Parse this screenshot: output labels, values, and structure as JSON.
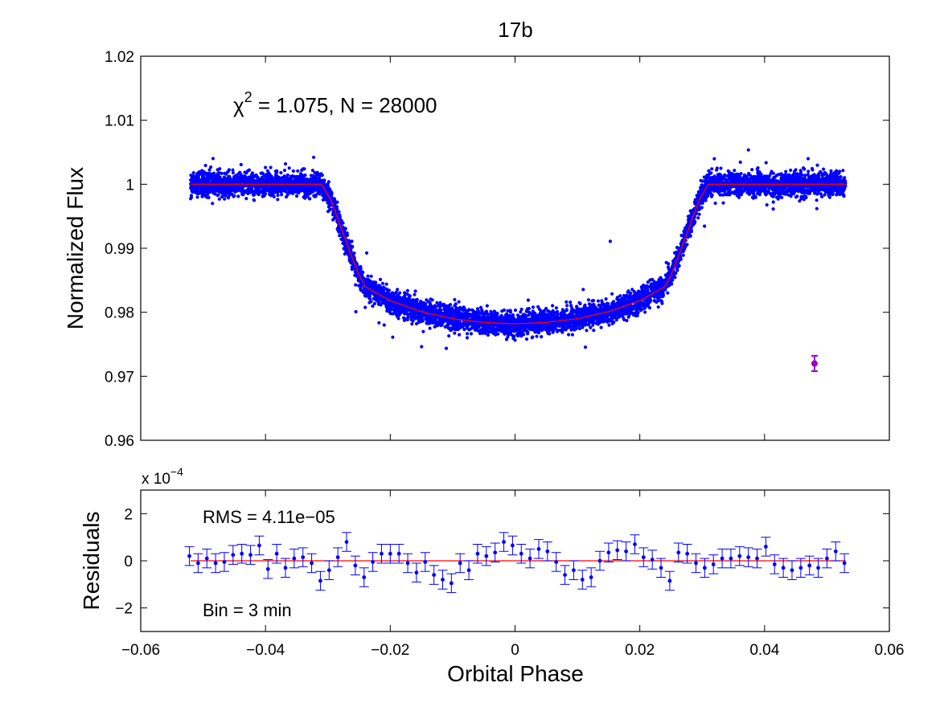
{
  "colors": {
    "data_points": "#0000ff",
    "model_curve": "#ff0000",
    "error_bar_marker": "#9900cc",
    "axes": "#000000",
    "background": "#ffffff"
  },
  "chart_data": [
    {
      "panel": "top",
      "type": "scatter",
      "title": "17b",
      "xlabel": "",
      "ylabel": "Normalized Flux",
      "xlim": [
        -0.06,
        0.06
      ],
      "ylim": [
        0.96,
        1.02
      ],
      "x_ticks": [
        -0.06,
        -0.04,
        -0.02,
        0,
        0.02,
        0.04,
        0.06
      ],
      "y_ticks": [
        0.96,
        0.97,
        0.98,
        0.99,
        1,
        1.01,
        1.02
      ],
      "y_tick_labels": [
        "0.96",
        "0.97",
        "0.98",
        "0.99",
        "1",
        "1.01",
        "1.02"
      ],
      "annotation": {
        "symbol": "χ",
        "superscript": "2",
        "text": " = 1.075, N = 28000"
      },
      "data_summary": {
        "n_points": 28000,
        "x_range": [
          -0.052,
          0.053
        ],
        "out_of_transit_flux": 1.0,
        "in_transit_min_flux": 0.9782,
        "point_scatter": 0.0012
      },
      "model_curve": {
        "name": "model",
        "x": [
          -0.052,
          -0.031,
          -0.0295,
          -0.028,
          -0.0265,
          -0.025,
          -0.024,
          -0.02,
          -0.015,
          -0.01,
          -0.005,
          0,
          0.005,
          0.01,
          0.015,
          0.02,
          0.024,
          0.025,
          0.0265,
          0.028,
          0.0295,
          0.031,
          0.053
        ],
        "y": [
          1.0,
          1.0,
          0.9975,
          0.9935,
          0.9895,
          0.9858,
          0.984,
          0.9818,
          0.9801,
          0.979,
          0.9784,
          0.9782,
          0.9784,
          0.979,
          0.9801,
          0.9818,
          0.984,
          0.9858,
          0.9895,
          0.9935,
          0.9975,
          1.0,
          1.0
        ]
      },
      "typical_error_bar": {
        "x": 0.048,
        "y": 0.972,
        "error": 0.0012
      }
    },
    {
      "panel": "bottom",
      "type": "scatter",
      "title": "",
      "xlabel": "Orbital Phase",
      "ylabel": "Residuals",
      "xlim": [
        -0.06,
        0.06
      ],
      "ylim": [
        -3,
        3
      ],
      "y_scale_label": {
        "base": "x 10",
        "exponent": "−4"
      },
      "x_ticks": [
        -0.06,
        -0.04,
        -0.02,
        0,
        0.02,
        0.04,
        0.06
      ],
      "x_tick_labels": [
        "−0.06",
        "−0.04",
        "−0.02",
        "0",
        "0.02",
        "0.04",
        "0.06"
      ],
      "y_ticks": [
        -2,
        0,
        2
      ],
      "y_tick_labels": [
        "−2",
        "0",
        "2"
      ],
      "annotations": [
        "RMS = 4.11e−05",
        "Bin = 3 min"
      ],
      "error": 0.4,
      "binned_residuals": {
        "x": [
          -0.0522,
          -0.0508,
          -0.0494,
          -0.048,
          -0.0466,
          -0.0452,
          -0.0438,
          -0.0424,
          -0.041,
          -0.0396,
          -0.0382,
          -0.0368,
          -0.0354,
          -0.034,
          -0.0326,
          -0.0312,
          -0.0298,
          -0.0284,
          -0.027,
          -0.0256,
          -0.0242,
          -0.0228,
          -0.0214,
          -0.02,
          -0.0186,
          -0.0172,
          -0.0158,
          -0.0144,
          -0.013,
          -0.0116,
          -0.0102,
          -0.0088,
          -0.0074,
          -0.006,
          -0.0046,
          -0.0032,
          -0.0018,
          -0.0004,
          0.001,
          0.0024,
          0.0038,
          0.0052,
          0.0066,
          0.008,
          0.0094,
          0.0108,
          0.0122,
          0.0136,
          0.015,
          0.0164,
          0.0178,
          0.0192,
          0.0206,
          0.022,
          0.0234,
          0.0248,
          0.0262,
          0.0276,
          0.029,
          0.0304,
          0.0318,
          0.0332,
          0.0346,
          0.036,
          0.0374,
          0.0388,
          0.0402,
          0.0416,
          0.043,
          0.0444,
          0.0458,
          0.0472,
          0.0486,
          0.05,
          0.0514,
          0.0528
        ],
        "y": [
          0.2,
          -0.1,
          0.1,
          -0.1,
          -0.05,
          0.25,
          0.3,
          0.25,
          0.65,
          -0.35,
          0.3,
          -0.3,
          0.1,
          0.15,
          -0.1,
          -0.85,
          -0.4,
          0.15,
          0.8,
          -0.2,
          -0.7,
          -0.05,
          0.3,
          0.3,
          0.3,
          -0.1,
          -0.5,
          -0.05,
          -0.6,
          -0.8,
          -0.95,
          -0.1,
          -0.4,
          0.3,
          0.2,
          0.35,
          0.8,
          0.65,
          0.3,
          0.1,
          0.5,
          0.4,
          -0.05,
          -0.6,
          -0.4,
          -0.8,
          -0.7,
          0.0,
          0.35,
          0.45,
          0.4,
          0.7,
          0.15,
          0.05,
          -0.3,
          -0.85,
          0.35,
          0.3,
          -0.1,
          -0.3,
          -0.15,
          0.1,
          0.1,
          0.2,
          0.15,
          0.1,
          0.6,
          -0.15,
          -0.3,
          -0.4,
          -0.3,
          -0.2,
          -0.3,
          0.1,
          0.4,
          -0.1
        ]
      },
      "model_line": {
        "y": 0
      }
    }
  ]
}
